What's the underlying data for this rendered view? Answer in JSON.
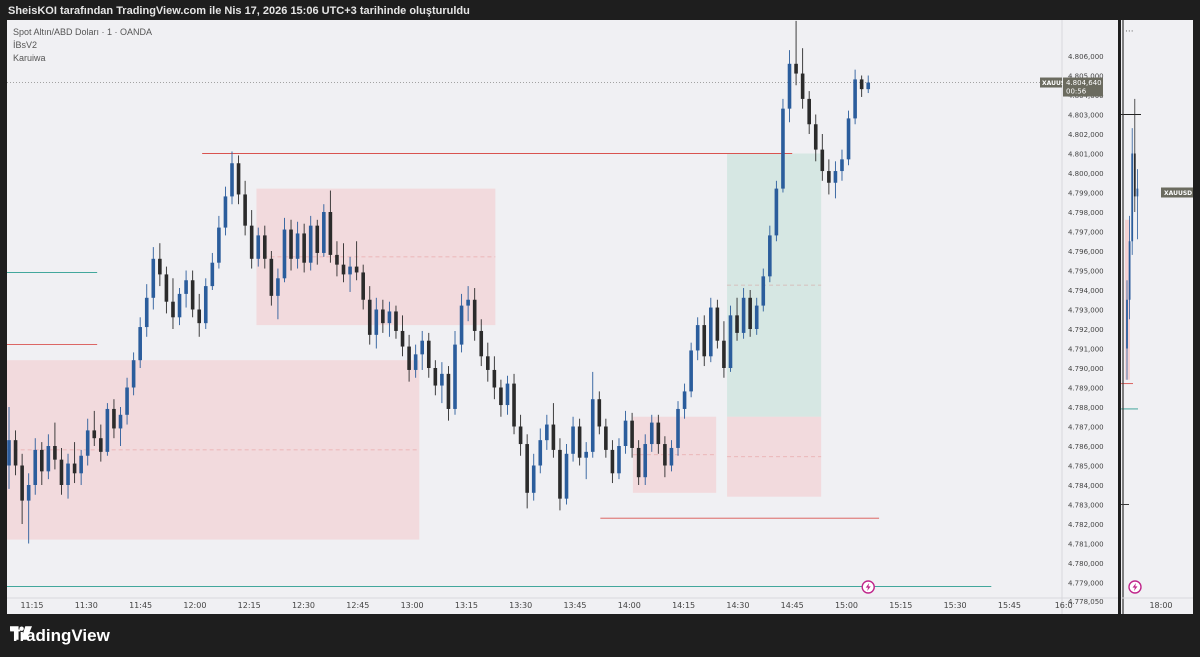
{
  "header": {
    "text": "SheisKOI tarafından TradingView.com ile Nis 17, 2026 15:06 UTC+3 tarihinde oluşturuldu"
  },
  "legend": {
    "symbol": "Spot Altın/ABD Doları · 1 · OANDA",
    "indicator1": "İBsV2",
    "indicator2": "Karuiwa"
  },
  "price_label": {
    "symbol": "XAUUSD",
    "price": "4.804,640",
    "countdown": "00:56"
  },
  "mini_panel": {
    "symbol": "XAUUSD",
    "time_label": "18:00",
    "menu": "···"
  },
  "brand": {
    "name": "TradingView"
  },
  "colors": {
    "background": "#f0f0f3",
    "up_candle": "#2b5d9c",
    "down_candle": "#2b2b2b",
    "zone_red": "#f3d3d5",
    "zone_green": "#d3e6e1",
    "level_red": "#d9534f",
    "level_teal": "#2a9d8f",
    "level_orange": "#f0a050",
    "level_purple": "#b05cd0"
  },
  "chart_data": {
    "type": "candlestick",
    "symbol": "XAUUSD",
    "timeframe": "1",
    "x_axis": {
      "tick_labels": [
        "11:15",
        "11:30",
        "11:45",
        "12:00",
        "12:15",
        "12:30",
        "12:45",
        "13:00",
        "13:15",
        "13:30",
        "13:45",
        "14:00",
        "14:15",
        "14:30",
        "14:45",
        "15:00",
        "15:15",
        "15:30",
        "15:45",
        "16:0"
      ]
    },
    "y_axis": {
      "range": [
        4778.0,
        4808.0
      ],
      "tick_labels": [
        "4.806,000",
        "4.805,000",
        "4.804,000",
        "4.803,000",
        "4.802,000",
        "4.801,000",
        "4.800,000",
        "4.799,000",
        "4.798,000",
        "4.797,000",
        "4.796,000",
        "4.795,000",
        "4.794,000",
        "4.793,000",
        "4.792,000",
        "4.791,000",
        "4.790,000",
        "4.789,000",
        "4.788,000",
        "4.787,000",
        "4.786,000",
        "4.785,000",
        "4.784,000",
        "4.783,000",
        "4.782,000",
        "4.781,000",
        "4.780,000",
        "4.779,000",
        "4.778,050"
      ]
    },
    "last_price": 4804.64,
    "zones": [
      {
        "kind": "supply",
        "color": "red",
        "x0": "11:08",
        "x1": "13:02",
        "y0": 4781.2,
        "y1": 4790.4
      },
      {
        "kind": "supply",
        "color": "red",
        "x0": "12:17",
        "x1": "13:23",
        "y0": 4792.2,
        "y1": 4799.2
      },
      {
        "kind": "target",
        "color": "green",
        "x0": "14:27",
        "x1": "14:53",
        "y0": 4787.5,
        "y1": 4801.0
      },
      {
        "kind": "stop",
        "color": "red",
        "x0": "14:27",
        "x1": "14:53",
        "y0": 4783.4,
        "y1": 4787.5
      },
      {
        "kind": "box",
        "color": "red",
        "x0": "14:01",
        "x1": "14:24",
        "y0": 4783.6,
        "y1": 4787.5
      }
    ],
    "levels": [
      {
        "color": "red",
        "price": 4801.0,
        "x0": "12:02",
        "x1": "14:45"
      },
      {
        "color": "red",
        "price": 4782.3,
        "x0": "13:52",
        "x1": "15:09"
      },
      {
        "color": "red",
        "price": 4791.2,
        "x0": "11:08",
        "x1": "11:33"
      },
      {
        "color": "teal",
        "price": 4794.9,
        "x0": "11:08",
        "x1": "11:33"
      },
      {
        "color": "teal",
        "price": 4778.8,
        "x0": "11:08",
        "x1": "15:40"
      }
    ],
    "candles": [
      [
        4785.0,
        4788.0,
        4783.8,
        4786.3
      ],
      [
        4786.3,
        4786.8,
        4784.5,
        4785.0
      ],
      [
        4785.0,
        4785.6,
        4782.0,
        4783.2
      ],
      [
        4783.2,
        4784.6,
        4781.0,
        4784.0
      ],
      [
        4784.0,
        4786.4,
        4783.5,
        4785.8
      ],
      [
        4785.8,
        4786.2,
        4784.0,
        4784.7
      ],
      [
        4784.7,
        4786.6,
        4784.3,
        4786.0
      ],
      [
        4786.0,
        4787.2,
        4784.8,
        4785.3
      ],
      [
        4785.3,
        4785.9,
        4783.5,
        4784.0
      ],
      [
        4784.0,
        4785.6,
        4783.3,
        4785.1
      ],
      [
        4785.1,
        4786.2,
        4784.1,
        4784.6
      ],
      [
        4784.6,
        4785.8,
        4784.0,
        4785.5
      ],
      [
        4785.5,
        4787.4,
        4785.0,
        4786.8
      ],
      [
        4786.8,
        4787.8,
        4786.0,
        4786.4
      ],
      [
        4786.4,
        4787.1,
        4785.2,
        4785.7
      ],
      [
        4785.7,
        4788.2,
        4785.5,
        4787.9
      ],
      [
        4787.9,
        4788.4,
        4786.4,
        4786.9
      ],
      [
        4786.9,
        4788.0,
        4786.0,
        4787.6
      ],
      [
        4787.6,
        4789.5,
        4787.1,
        4789.0
      ],
      [
        4789.0,
        4790.8,
        4788.6,
        4790.4
      ],
      [
        4790.4,
        4792.6,
        4790.0,
        4792.1
      ],
      [
        4792.1,
        4794.3,
        4791.6,
        4793.6
      ],
      [
        4793.6,
        4796.2,
        4793.0,
        4795.6
      ],
      [
        4795.6,
        4796.4,
        4794.2,
        4794.8
      ],
      [
        4794.8,
        4795.2,
        4792.8,
        4793.4
      ],
      [
        4793.4,
        4794.6,
        4792.0,
        4792.6
      ],
      [
        4792.6,
        4794.1,
        4792.2,
        4793.8
      ],
      [
        4793.8,
        4795.0,
        4793.1,
        4794.5
      ],
      [
        4794.5,
        4795.0,
        4792.6,
        4793.0
      ],
      [
        4793.0,
        4793.8,
        4791.6,
        4792.3
      ],
      [
        4792.3,
        4794.6,
        4792.0,
        4794.2
      ],
      [
        4794.2,
        4795.9,
        4794.0,
        4795.4
      ],
      [
        4795.4,
        4797.8,
        4795.1,
        4797.2
      ],
      [
        4797.2,
        4799.3,
        4796.8,
        4798.8
      ],
      [
        4798.8,
        4801.1,
        4798.4,
        4800.5
      ],
      [
        4800.5,
        4800.9,
        4798.4,
        4798.9
      ],
      [
        4798.9,
        4799.6,
        4796.8,
        4797.3
      ],
      [
        4797.3,
        4798.1,
        4795.1,
        4795.6
      ],
      [
        4795.6,
        4797.2,
        4795.2,
        4796.8
      ],
      [
        4796.8,
        4797.3,
        4795.1,
        4795.6
      ],
      [
        4795.6,
        4796.0,
        4793.2,
        4793.7
      ],
      [
        4793.7,
        4795.1,
        4792.5,
        4794.6
      ],
      [
        4794.6,
        4797.7,
        4794.4,
        4797.1
      ],
      [
        4797.1,
        4797.6,
        4795.0,
        4795.6
      ],
      [
        4795.6,
        4797.5,
        4795.1,
        4796.9
      ],
      [
        4796.9,
        4797.4,
        4794.9,
        4795.4
      ],
      [
        4795.4,
        4797.8,
        4795.0,
        4797.3
      ],
      [
        4797.3,
        4797.6,
        4795.3,
        4795.9
      ],
      [
        4795.9,
        4798.4,
        4795.7,
        4798.0
      ],
      [
        4798.0,
        4799.1,
        4795.4,
        4795.8
      ],
      [
        4795.8,
        4796.5,
        4794.7,
        4795.3
      ],
      [
        4795.3,
        4796.4,
        4794.4,
        4794.8
      ],
      [
        4794.8,
        4795.7,
        4793.9,
        4795.2
      ],
      [
        4795.2,
        4796.5,
        4794.5,
        4794.9
      ],
      [
        4794.9,
        4795.3,
        4793.0,
        4793.5
      ],
      [
        4793.5,
        4794.2,
        4791.2,
        4791.7
      ],
      [
        4791.7,
        4793.6,
        4791.0,
        4793.0
      ],
      [
        4793.0,
        4793.5,
        4791.8,
        4792.3
      ],
      [
        4792.3,
        4793.4,
        4791.6,
        4792.9
      ],
      [
        4792.9,
        4793.2,
        4791.5,
        4791.9
      ],
      [
        4791.9,
        4792.7,
        4790.6,
        4791.1
      ],
      [
        4791.1,
        4791.7,
        4789.3,
        4789.9
      ],
      [
        4789.9,
        4791.2,
        4789.5,
        4790.7
      ],
      [
        4790.7,
        4791.9,
        4789.9,
        4791.4
      ],
      [
        4791.4,
        4791.8,
        4789.5,
        4790.0
      ],
      [
        4790.0,
        4790.4,
        4788.6,
        4789.1
      ],
      [
        4789.1,
        4790.3,
        4788.2,
        4789.7
      ],
      [
        4789.7,
        4790.1,
        4787.3,
        4787.9
      ],
      [
        4787.9,
        4791.9,
        4787.6,
        4791.2
      ],
      [
        4791.2,
        4793.8,
        4790.8,
        4793.2
      ],
      [
        4793.2,
        4794.2,
        4792.4,
        4793.5
      ],
      [
        4793.5,
        4794.1,
        4791.4,
        4791.9
      ],
      [
        4791.9,
        4792.5,
        4790.1,
        4790.6
      ],
      [
        4790.6,
        4791.3,
        4789.3,
        4789.9
      ],
      [
        4789.9,
        4790.6,
        4788.4,
        4789.0
      ],
      [
        4789.0,
        4789.4,
        4787.5,
        4788.1
      ],
      [
        4788.1,
        4789.6,
        4787.6,
        4789.2
      ],
      [
        4789.2,
        4789.7,
        4786.6,
        4787.0
      ],
      [
        4787.0,
        4787.6,
        4785.5,
        4786.1
      ],
      [
        4786.1,
        4786.6,
        4782.8,
        4783.6
      ],
      [
        4783.6,
        4785.6,
        4783.2,
        4785.0
      ],
      [
        4785.0,
        4786.9,
        4784.6,
        4786.3
      ],
      [
        4786.3,
        4787.6,
        4785.8,
        4787.1
      ],
      [
        4787.1,
        4788.2,
        4785.4,
        4785.8
      ],
      [
        4785.8,
        4786.4,
        4782.7,
        4783.3
      ],
      [
        4783.3,
        4786.1,
        4783.0,
        4785.6
      ],
      [
        4785.6,
        4787.5,
        4785.2,
        4787.0
      ],
      [
        4787.0,
        4787.4,
        4785.0,
        4785.4
      ],
      [
        4785.4,
        4786.2,
        4784.3,
        4785.7
      ],
      [
        4785.7,
        4789.8,
        4785.4,
        4788.4
      ],
      [
        4788.4,
        4788.8,
        4786.6,
        4787.0
      ],
      [
        4787.0,
        4787.4,
        4785.4,
        4785.8
      ],
      [
        4785.8,
        4786.3,
        4784.1,
        4784.6
      ],
      [
        4784.6,
        4786.4,
        4784.3,
        4786.0
      ],
      [
        4786.0,
        4787.8,
        4785.6,
        4787.3
      ],
      [
        4787.3,
        4787.7,
        4785.4,
        4785.9
      ],
      [
        4785.9,
        4786.3,
        4784.0,
        4784.4
      ],
      [
        4784.4,
        4786.6,
        4784.0,
        4786.1
      ],
      [
        4786.1,
        4787.6,
        4785.7,
        4787.2
      ],
      [
        4787.2,
        4787.6,
        4785.6,
        4786.1
      ],
      [
        4786.1,
        4786.5,
        4784.4,
        4785.0
      ],
      [
        4785.0,
        4786.3,
        4784.7,
        4785.9
      ],
      [
        4785.9,
        4788.3,
        4785.5,
        4787.9
      ],
      [
        4787.9,
        4789.2,
        4787.4,
        4788.8
      ],
      [
        4788.8,
        4791.3,
        4788.5,
        4790.9
      ],
      [
        4790.9,
        4792.6,
        4790.4,
        4792.2
      ],
      [
        4792.2,
        4792.7,
        4790.1,
        4790.6
      ],
      [
        4790.6,
        4793.6,
        4790.3,
        4793.1
      ],
      [
        4793.1,
        4793.5,
        4791.0,
        4791.4
      ],
      [
        4791.4,
        4792.4,
        4789.5,
        4790.0
      ],
      [
        4790.0,
        4793.2,
        4789.8,
        4792.7
      ],
      [
        4792.7,
        4793.6,
        4791.4,
        4791.8
      ],
      [
        4791.8,
        4794.1,
        4791.5,
        4793.6
      ],
      [
        4793.6,
        4794.0,
        4791.6,
        4792.0
      ],
      [
        4792.0,
        4793.6,
        4791.7,
        4793.2
      ],
      [
        4793.2,
        4795.1,
        4792.9,
        4794.7
      ],
      [
        4794.7,
        4797.3,
        4794.4,
        4796.8
      ],
      [
        4796.8,
        4799.6,
        4796.5,
        4799.2
      ],
      [
        4799.2,
        4803.8,
        4799.0,
        4803.3
      ],
      [
        4803.3,
        4806.3,
        4802.6,
        4805.6
      ],
      [
        4805.6,
        4807.8,
        4804.5,
        4805.1
      ],
      [
        4805.1,
        4806.4,
        4803.3,
        4803.8
      ],
      [
        4803.8,
        4804.2,
        4802.0,
        4802.5
      ],
      [
        4802.5,
        4803.0,
        4800.6,
        4801.2
      ],
      [
        4801.2,
        4802.0,
        4799.6,
        4800.1
      ],
      [
        4800.1,
        4800.7,
        4798.9,
        4799.5
      ],
      [
        4799.5,
        4800.6,
        4798.7,
        4800.1
      ],
      [
        4800.1,
        4801.2,
        4799.6,
        4800.7
      ],
      [
        4800.7,
        4803.2,
        4800.4,
        4802.8
      ],
      [
        4802.8,
        4805.3,
        4802.5,
        4804.8
      ],
      [
        4804.8,
        4805.0,
        4803.9,
        4804.3
      ],
      [
        4804.3,
        4805.0,
        4804.1,
        4804.64
      ]
    ]
  }
}
